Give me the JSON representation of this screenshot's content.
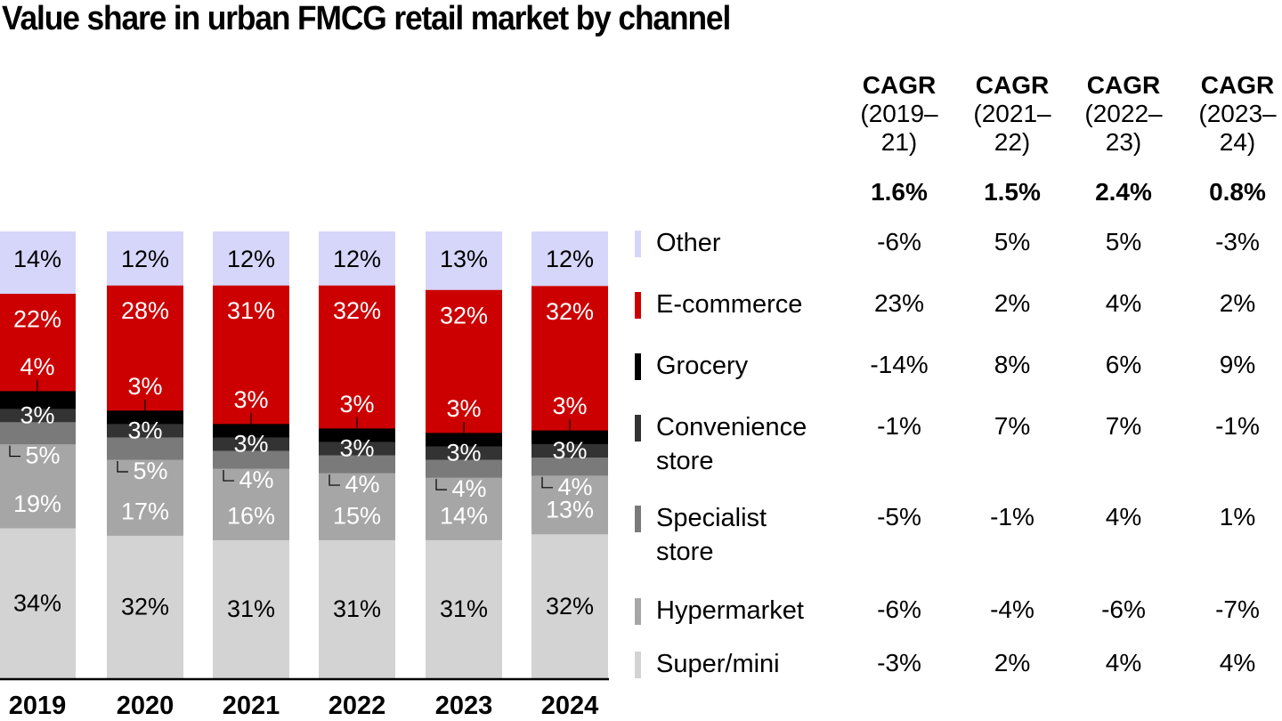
{
  "chart_data": {
    "type": "bar",
    "stacked": true,
    "title": "Value share in urban FMCG retail market by channel",
    "xlabel": "",
    "ylabel": "",
    "ylim": [
      0,
      100
    ],
    "categories": [
      "2019",
      "2020",
      "2021",
      "2022",
      "2023",
      "2024"
    ],
    "series": [
      {
        "name": "Super/mini",
        "color": "#d3d3d3",
        "label_color": "#000000",
        "values": [
          34,
          32,
          31,
          31,
          31,
          32
        ]
      },
      {
        "name": "Hypermarket",
        "color": "#a6a6a6",
        "label_color": "#ffffff",
        "values": [
          19,
          17,
          16,
          15,
          14,
          13
        ]
      },
      {
        "name": "Specialist store",
        "color": "#7a7a7a",
        "label_color": "#ffffff",
        "values": [
          5,
          5,
          4,
          4,
          4,
          4
        ]
      },
      {
        "name": "Convenience store",
        "color": "#333333",
        "label_color": "#ffffff",
        "values": [
          3,
          3,
          3,
          3,
          3,
          3
        ]
      },
      {
        "name": "Grocery",
        "color": "#000000",
        "label_color": "#ffffff",
        "values": [
          4,
          3,
          3,
          3,
          3,
          3
        ]
      },
      {
        "name": "E-commerce",
        "color": "#cc0000",
        "label_color": "#ffffff",
        "values": [
          22,
          28,
          31,
          32,
          32,
          32
        ]
      },
      {
        "name": "Other",
        "color": "#d6d6fa",
        "label_color": "#000000",
        "values": [
          14,
          12,
          12,
          12,
          13,
          12
        ]
      }
    ],
    "legend": "right",
    "grid": false,
    "cagr_table": {
      "headers": [
        {
          "label": "CAGR",
          "period": "(2019–21)",
          "total": "1.6%"
        },
        {
          "label": "CAGR",
          "period": "(2021–22)",
          "total": "1.5%"
        },
        {
          "label": "CAGR",
          "period": "(2022–23)",
          "total": "2.4%"
        },
        {
          "label": "CAGR",
          "period": "(2023–24)",
          "total": "0.8%"
        }
      ],
      "rows": [
        {
          "channel": "Other",
          "values": [
            "-6%",
            "5%",
            "5%",
            "-3%"
          ]
        },
        {
          "channel": "E-commerce",
          "values": [
            "23%",
            "2%",
            "4%",
            "2%"
          ]
        },
        {
          "channel": "Grocery",
          "values": [
            "-14%",
            "8%",
            "6%",
            "9%"
          ]
        },
        {
          "channel": "Convenience store",
          "values": [
            "-1%",
            "7%",
            "7%",
            "-1%"
          ]
        },
        {
          "channel": "Specialist store",
          "values": [
            "-5%",
            "-1%",
            "4%",
            "1%"
          ]
        },
        {
          "channel": "Hypermarket",
          "values": [
            "-6%",
            "-4%",
            "-6%",
            "-7%"
          ]
        },
        {
          "channel": "Super/mini",
          "values": [
            "-3%",
            "2%",
            "4%",
            "4%"
          ]
        }
      ]
    }
  },
  "header": {
    "title": "Value share in urban FMCG retail market by channel"
  },
  "cagr_heads": [
    {
      "label": "CAGR",
      "line1": "(2019–",
      "line2": "21)",
      "total": "1.6%"
    },
    {
      "label": "CAGR",
      "line1": "(2021–",
      "line2": "22)",
      "total": "1.5%"
    },
    {
      "label": "CAGR",
      "line1": "(2022–",
      "line2": "23)",
      "total": "2.4%"
    },
    {
      "label": "CAGR",
      "line1": "(2023–",
      "line2": "24)",
      "total": "0.8%"
    }
  ],
  "legend_rows": [
    {
      "line1": "Other",
      "line2": "",
      "color": "#d6d6fa",
      "values": [
        "-6%",
        "5%",
        "5%",
        "-3%"
      ]
    },
    {
      "line1": "E-commerce",
      "line2": "",
      "color": "#cc0000",
      "values": [
        "23%",
        "2%",
        "4%",
        "2%"
      ]
    },
    {
      "line1": "Grocery",
      "line2": "",
      "color": "#000000",
      "values": [
        "-14%",
        "8%",
        "6%",
        "9%"
      ]
    },
    {
      "line1": "Convenience",
      "line2": "store",
      "color": "#333333",
      "values": [
        "-1%",
        "7%",
        "7%",
        "-1%"
      ]
    },
    {
      "line1": "Specialist",
      "line2": "store",
      "color": "#7a7a7a",
      "values": [
        "-5%",
        "-1%",
        "4%",
        "1%"
      ]
    },
    {
      "line1": "Hypermarket",
      "line2": "",
      "color": "#a6a6a6",
      "values": [
        "-6%",
        "-4%",
        "-6%",
        "-7%"
      ]
    },
    {
      "line1": "Super/mini",
      "line2": "",
      "color": "#d3d3d3",
      "values": [
        "-3%",
        "2%",
        "4%",
        "4%"
      ]
    }
  ]
}
